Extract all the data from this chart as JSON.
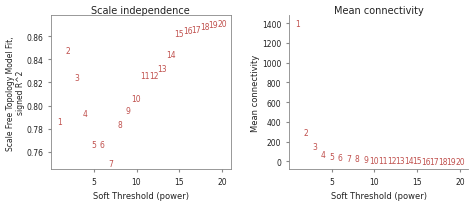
{
  "left_title": "Scale independence",
  "right_title": "Mean connectivity",
  "xlabel": "Soft Threshold (power)",
  "left_ylabel": "Scale Free Topology Model Fit,\nsigned R²2",
  "right_ylabel": "Mean connectivity",
  "text_color": "#c0504d",
  "bg_color": "#ffffff",
  "powers": [
    1,
    2,
    3,
    4,
    5,
    6,
    7,
    8,
    9,
    10,
    11,
    12,
    13,
    14,
    15,
    16,
    17,
    18,
    19,
    20
  ],
  "sft_y": [
    0.786,
    0.848,
    0.824,
    0.793,
    0.766,
    0.766,
    0.75,
    0.784,
    0.796,
    0.806,
    0.826,
    0.826,
    0.832,
    0.844,
    0.862,
    0.865,
    0.866,
    0.868,
    0.87,
    0.871
  ],
  "connectivity": [
    1400,
    290,
    150,
    70,
    50,
    40,
    32,
    25,
    18,
    13,
    10,
    8,
    6,
    5,
    4,
    3,
    3,
    2,
    2,
    2
  ],
  "left_xlim": [
    0,
    21
  ],
  "left_ylim": [
    0.745,
    0.878
  ],
  "left_yticks": [
    0.76,
    0.78,
    0.8,
    0.82,
    0.84,
    0.86
  ],
  "right_xlim": [
    0,
    21
  ],
  "right_ylim": [
    -80,
    1480
  ],
  "right_yticks": [
    0,
    200,
    400,
    600,
    800,
    1000,
    1200,
    1400
  ],
  "xticks": [
    5,
    10,
    15,
    20
  ],
  "label_fontsize": 5.5,
  "tick_fontsize": 5.5,
  "title_fontsize": 7.0,
  "axis_label_fontsize": 6.0,
  "point_fontsize": 5.5
}
